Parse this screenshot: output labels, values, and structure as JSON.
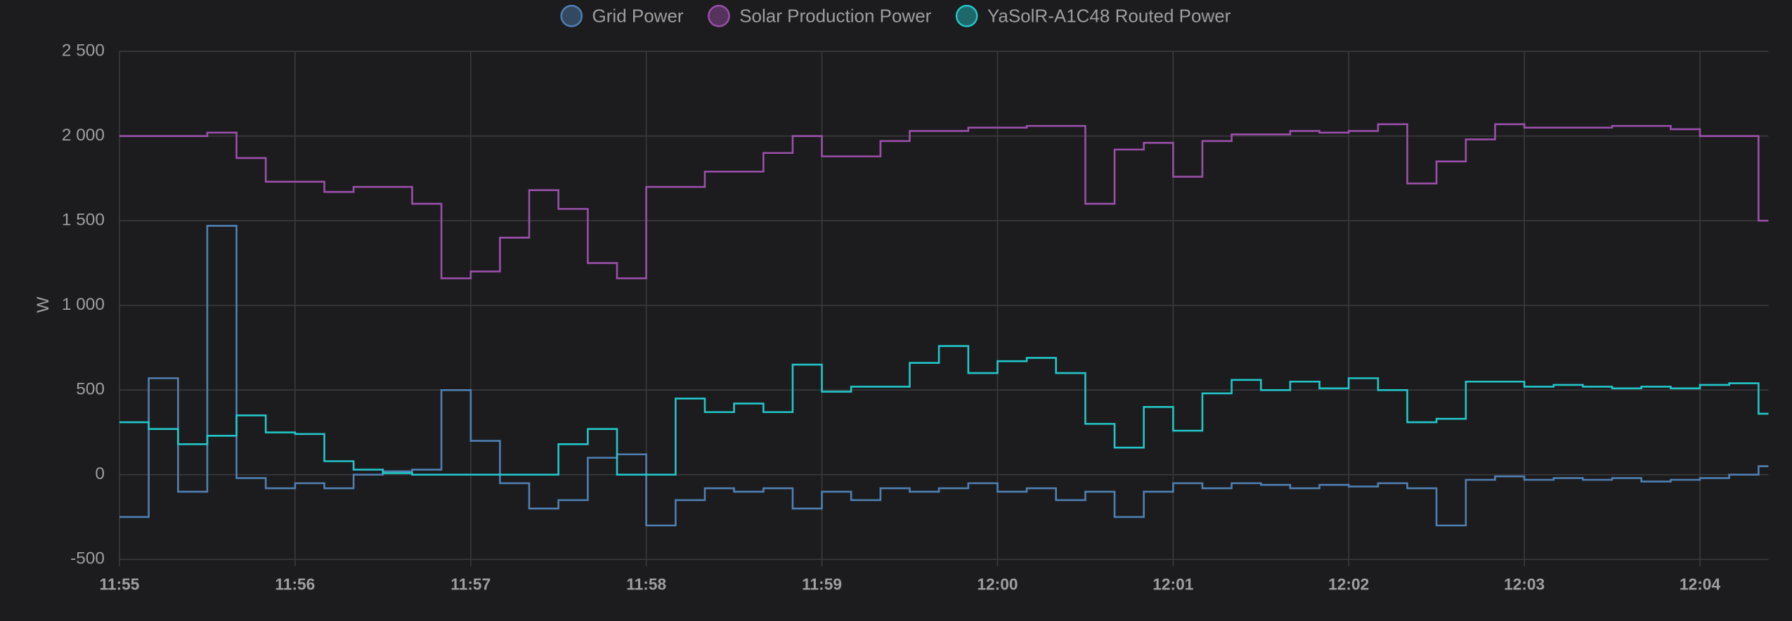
{
  "chart_data": {
    "type": "line",
    "step": true,
    "y_label": "W",
    "categories": [
      "11:55",
      null,
      null,
      null,
      null,
      null,
      "11:56",
      null,
      null,
      null,
      null,
      null,
      "11:57",
      null,
      null,
      null,
      null,
      null,
      "11:58",
      null,
      null,
      null,
      null,
      null,
      "11:59",
      null,
      null,
      null,
      null,
      null,
      "12:00",
      null,
      null,
      null,
      null,
      null,
      "12:01",
      null,
      null,
      null,
      null,
      null,
      "12:02",
      null,
      null,
      null,
      null,
      null,
      "12:03",
      null,
      null,
      null,
      null,
      null,
      "12:04",
      null,
      null
    ],
    "series": [
      {
        "name": "Grid Power",
        "color": "#4f80b3",
        "values": [
          -250,
          570,
          -100,
          1470,
          -20,
          -80,
          -50,
          -80,
          0,
          20,
          30,
          500,
          200,
          -50,
          -200,
          -150,
          100,
          120,
          -300,
          -150,
          -80,
          -100,
          -80,
          -200,
          -100,
          -150,
          -80,
          -100,
          -80,
          -50,
          -100,
          -80,
          -150,
          -100,
          -250,
          -100,
          -50,
          -80,
          -50,
          -60,
          -80,
          -60,
          -70,
          -50,
          -80,
          -300,
          -30,
          -10,
          -30,
          -20,
          -30,
          -20,
          -40,
          -30,
          -20,
          0,
          50
        ]
      },
      {
        "name": "Solar Production Power",
        "color": "#9b4fab",
        "values": [
          2000,
          2000,
          2000,
          2020,
          1870,
          1730,
          1730,
          1670,
          1700,
          1700,
          1600,
          1160,
          1200,
          1400,
          1680,
          1570,
          1250,
          1160,
          1700,
          1700,
          1790,
          1790,
          1900,
          2000,
          1880,
          1880,
          1970,
          2030,
          2030,
          2050,
          2050,
          2060,
          2060,
          1600,
          1920,
          1960,
          1760,
          1970,
          2010,
          2010,
          2030,
          2020,
          2030,
          2070,
          1720,
          1850,
          1980,
          2070,
          2050,
          2050,
          2050,
          2060,
          2060,
          2040,
          2000,
          2000,
          1500
        ]
      },
      {
        "name": "YaSolR-A1C48 Routed Power",
        "color": "#22c6c9",
        "values": [
          310,
          270,
          180,
          230,
          350,
          250,
          240,
          80,
          30,
          10,
          0,
          0,
          0,
          0,
          0,
          180,
          270,
          0,
          0,
          450,
          370,
          420,
          370,
          650,
          490,
          520,
          520,
          660,
          760,
          600,
          670,
          690,
          600,
          300,
          160,
          400,
          260,
          480,
          560,
          500,
          550,
          510,
          570,
          500,
          310,
          330,
          550,
          550,
          520,
          530,
          520,
          510,
          520,
          510,
          530,
          540,
          360
        ]
      }
    ],
    "ylim": [
      -500,
      2500
    ],
    "yticks": [
      -500,
      0,
      500,
      {
        "value": 1000,
        "label": "1 000"
      },
      {
        "value": 1500,
        "label": "1 500"
      },
      {
        "value": 2000,
        "label": "2 000"
      },
      {
        "value": 2500,
        "label": "2 500"
      }
    ],
    "grid": true,
    "legend": "top"
  }
}
